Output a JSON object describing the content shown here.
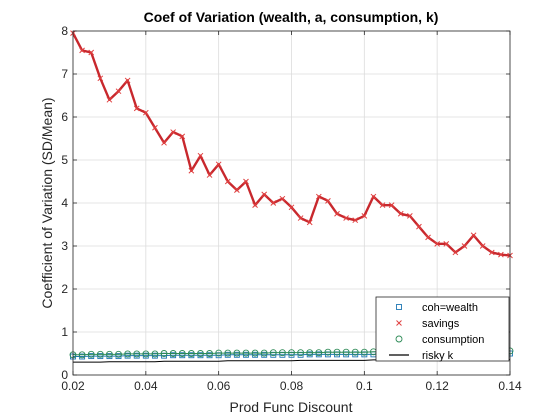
{
  "chart_data": {
    "type": "line",
    "title": "Coef of Variation (wealth, a, consumption, k)",
    "xlabel": "Prod Func Discount",
    "ylabel": "Coefficient of Variation (SD/Mean)",
    "xlim": [
      0.02,
      0.14
    ],
    "ylim": [
      0,
      8
    ],
    "xticks": [
      "0.02",
      "0.04",
      "0.06",
      "0.08",
      "0.1",
      "0.12",
      "0.14"
    ],
    "xtick_values": [
      0.02,
      0.04,
      0.06,
      0.08,
      0.1,
      0.12,
      0.14
    ],
    "yticks": [
      "0",
      "1",
      "2",
      "3",
      "4",
      "5",
      "6",
      "7",
      "8"
    ],
    "ytick_values": [
      0,
      1,
      2,
      3,
      4,
      5,
      6,
      7,
      8
    ],
    "grid": true,
    "legend_position": "bottom-right",
    "x": [
      0.02,
      0.0225,
      0.025,
      0.0275,
      0.03,
      0.0325,
      0.035,
      0.0375,
      0.04,
      0.0425,
      0.045,
      0.0475,
      0.05,
      0.0525,
      0.055,
      0.0575,
      0.06,
      0.0625,
      0.065,
      0.0675,
      0.07,
      0.0725,
      0.075,
      0.0775,
      0.08,
      0.0825,
      0.085,
      0.0875,
      0.09,
      0.0925,
      0.095,
      0.0975,
      0.1,
      0.1025,
      0.105,
      0.1075,
      0.11,
      0.1125,
      0.115,
      0.1175,
      0.12,
      0.1225,
      0.125,
      0.1275,
      0.13,
      0.1325,
      0.135,
      0.1375,
      0.14
    ],
    "series": [
      {
        "name": "coh=wealth",
        "marker": "square",
        "color": "#1f77b4",
        "values": [
          0.43,
          0.43,
          0.44,
          0.44,
          0.44,
          0.44,
          0.45,
          0.45,
          0.45,
          0.45,
          0.45,
          0.46,
          0.46,
          0.46,
          0.46,
          0.46,
          0.46,
          0.47,
          0.47,
          0.47,
          0.47,
          0.47,
          0.47,
          0.47,
          0.47,
          0.47,
          0.48,
          0.48,
          0.48,
          0.48,
          0.48,
          0.48,
          0.48,
          0.48,
          0.49,
          0.49,
          0.49,
          0.49,
          0.49,
          0.49,
          0.49,
          0.49,
          0.5,
          0.5,
          0.5,
          0.5,
          0.5,
          0.5,
          0.5
        ]
      },
      {
        "name": "savings",
        "marker": "x",
        "color": "#d62728",
        "values": [
          7.95,
          7.55,
          7.5,
          6.9,
          6.4,
          6.6,
          6.85,
          6.2,
          6.1,
          5.75,
          5.4,
          5.65,
          5.55,
          4.75,
          5.1,
          4.65,
          4.9,
          4.5,
          4.3,
          4.5,
          3.95,
          4.2,
          4.0,
          4.1,
          3.9,
          3.65,
          3.55,
          4.15,
          4.05,
          3.75,
          3.65,
          3.6,
          3.7,
          4.15,
          3.95,
          3.95,
          3.75,
          3.7,
          3.45,
          3.2,
          3.05,
          3.05,
          2.85,
          3.0,
          3.25,
          3.0,
          2.85,
          2.8,
          2.78
        ]
      },
      {
        "name": "consumption",
        "marker": "circle",
        "color": "#2e8b57",
        "values": [
          0.47,
          0.47,
          0.48,
          0.48,
          0.48,
          0.48,
          0.49,
          0.49,
          0.49,
          0.49,
          0.5,
          0.5,
          0.5,
          0.5,
          0.5,
          0.5,
          0.51,
          0.51,
          0.51,
          0.51,
          0.51,
          0.51,
          0.52,
          0.52,
          0.52,
          0.52,
          0.52,
          0.52,
          0.53,
          0.53,
          0.53,
          0.53,
          0.53,
          0.54,
          0.54,
          0.54,
          0.54,
          0.54,
          0.54,
          0.55,
          0.55,
          0.55,
          0.55,
          0.55,
          0.55,
          0.56,
          0.56,
          0.56,
          0.56
        ]
      },
      {
        "name": "risky k",
        "marker": "line",
        "color": "#000000",
        "values": [
          0.3,
          0.3,
          0.3,
          0.3,
          0.31,
          0.31,
          0.31,
          0.31,
          0.31,
          0.31,
          0.32,
          0.32,
          0.32,
          0.32,
          0.32,
          0.32,
          0.32,
          0.33,
          0.33,
          0.33,
          0.33,
          0.33,
          0.33,
          0.33,
          0.33,
          0.34,
          0.34,
          0.34,
          0.34,
          0.34,
          0.34,
          0.34,
          0.34,
          0.35,
          0.35,
          0.35,
          0.35,
          0.35,
          0.35,
          0.35,
          0.35,
          0.35,
          0.36,
          0.36,
          0.36,
          0.36,
          0.36,
          0.36,
          0.36
        ]
      }
    ]
  }
}
